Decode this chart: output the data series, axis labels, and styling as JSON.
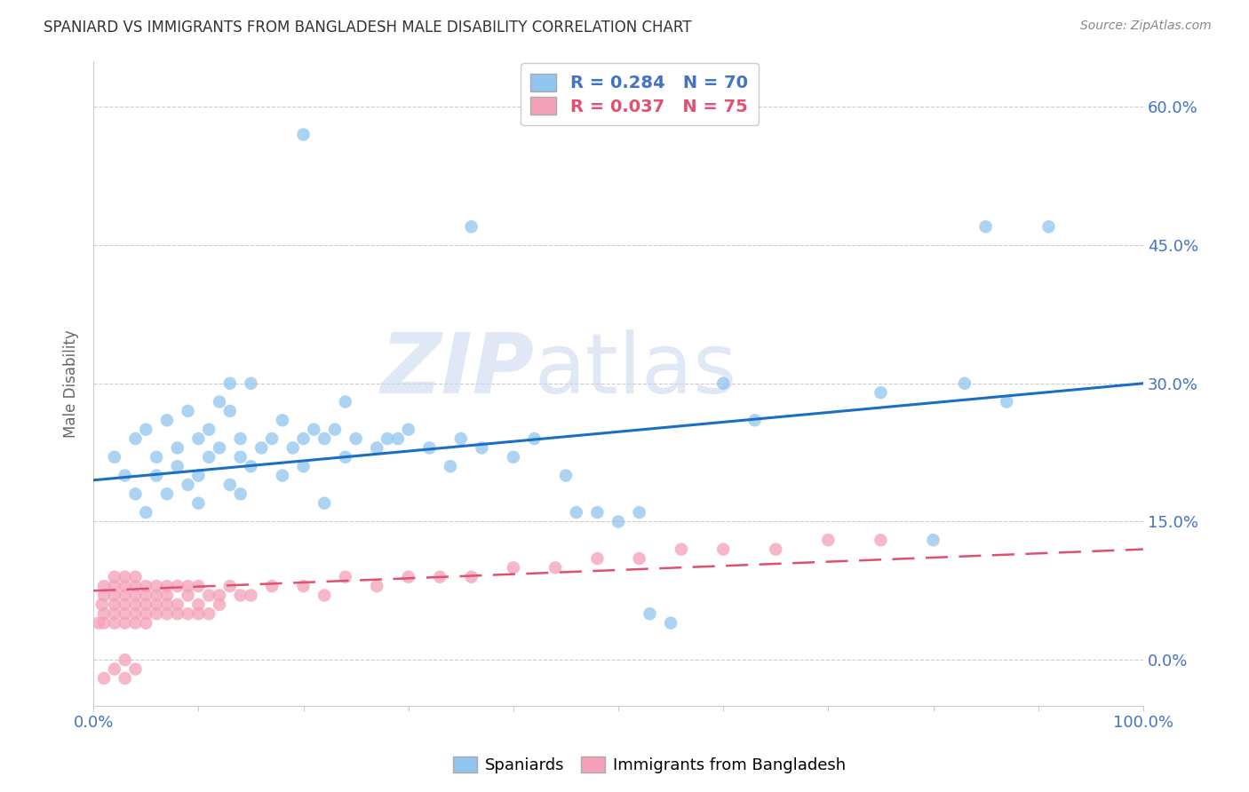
{
  "title": "SPANIARD VS IMMIGRANTS FROM BANGLADESH MALE DISABILITY CORRELATION CHART",
  "source": "Source: ZipAtlas.com",
  "ylabel": "Male Disability",
  "legend_label1": "Spaniards",
  "legend_label2": "Immigrants from Bangladesh",
  "R1": 0.284,
  "N1": 70,
  "R2": 0.037,
  "N2": 75,
  "color1": "#92C5F0",
  "color2": "#F4A0B8",
  "trendline1_color": "#1A6FC4",
  "trendline2_color": "#E05070",
  "xlim": [
    0.0,
    1.0
  ],
  "ylim": [
    -0.05,
    0.65
  ],
  "yticks": [
    0.0,
    0.15,
    0.3,
    0.45,
    0.6
  ],
  "xticks": [
    0.0,
    0.1,
    0.2,
    0.3,
    0.4,
    0.5,
    0.6,
    0.7,
    0.8,
    0.9,
    1.0
  ],
  "watermark_zip": "ZIP",
  "watermark_atlas": "atlas",
  "background_color": "#ffffff",
  "spaniards_x": [
    0.02,
    0.03,
    0.04,
    0.04,
    0.05,
    0.05,
    0.06,
    0.06,
    0.07,
    0.07,
    0.08,
    0.08,
    0.09,
    0.09,
    0.1,
    0.1,
    0.1,
    0.11,
    0.11,
    0.12,
    0.12,
    0.13,
    0.13,
    0.13,
    0.14,
    0.14,
    0.14,
    0.15,
    0.15,
    0.16,
    0.17,
    0.18,
    0.18,
    0.19,
    0.2,
    0.2,
    0.21,
    0.22,
    0.22,
    0.23,
    0.24,
    0.24,
    0.25,
    0.27,
    0.28,
    0.29,
    0.3,
    0.32,
    0.34,
    0.35,
    0.37,
    0.4,
    0.42,
    0.45,
    0.46,
    0.48,
    0.5,
    0.52,
    0.55,
    0.6,
    0.63,
    0.75,
    0.8,
    0.83,
    0.85,
    0.87,
    0.91,
    0.2,
    0.36,
    0.53
  ],
  "spaniards_y": [
    0.22,
    0.2,
    0.18,
    0.24,
    0.16,
    0.25,
    0.22,
    0.2,
    0.26,
    0.18,
    0.23,
    0.21,
    0.19,
    0.27,
    0.2,
    0.24,
    0.17,
    0.25,
    0.22,
    0.28,
    0.23,
    0.27,
    0.3,
    0.19,
    0.22,
    0.24,
    0.18,
    0.3,
    0.21,
    0.23,
    0.24,
    0.26,
    0.2,
    0.23,
    0.24,
    0.21,
    0.25,
    0.24,
    0.17,
    0.25,
    0.22,
    0.28,
    0.24,
    0.23,
    0.24,
    0.24,
    0.25,
    0.23,
    0.21,
    0.24,
    0.23,
    0.22,
    0.24,
    0.2,
    0.16,
    0.16,
    0.15,
    0.16,
    0.04,
    0.3,
    0.26,
    0.29,
    0.13,
    0.3,
    0.47,
    0.28,
    0.47,
    0.57,
    0.47,
    0.05
  ],
  "bangladesh_x": [
    0.005,
    0.008,
    0.01,
    0.01,
    0.01,
    0.01,
    0.02,
    0.02,
    0.02,
    0.02,
    0.02,
    0.02,
    0.03,
    0.03,
    0.03,
    0.03,
    0.03,
    0.03,
    0.04,
    0.04,
    0.04,
    0.04,
    0.04,
    0.04,
    0.05,
    0.05,
    0.05,
    0.05,
    0.05,
    0.06,
    0.06,
    0.06,
    0.06,
    0.07,
    0.07,
    0.07,
    0.07,
    0.08,
    0.08,
    0.08,
    0.09,
    0.09,
    0.09,
    0.1,
    0.1,
    0.1,
    0.11,
    0.11,
    0.12,
    0.12,
    0.13,
    0.14,
    0.15,
    0.17,
    0.2,
    0.22,
    0.24,
    0.27,
    0.3,
    0.33,
    0.36,
    0.4,
    0.44,
    0.48,
    0.52,
    0.56,
    0.6,
    0.65,
    0.7,
    0.75,
    0.01,
    0.02,
    0.03,
    0.03,
    0.04
  ],
  "bangladesh_y": [
    0.04,
    0.06,
    0.05,
    0.07,
    0.08,
    0.04,
    0.06,
    0.08,
    0.05,
    0.07,
    0.09,
    0.04,
    0.05,
    0.07,
    0.09,
    0.06,
    0.08,
    0.04,
    0.06,
    0.08,
    0.05,
    0.07,
    0.09,
    0.04,
    0.06,
    0.08,
    0.05,
    0.07,
    0.04,
    0.06,
    0.08,
    0.05,
    0.07,
    0.06,
    0.08,
    0.05,
    0.07,
    0.06,
    0.08,
    0.05,
    0.07,
    0.05,
    0.08,
    0.06,
    0.08,
    0.05,
    0.07,
    0.05,
    0.07,
    0.06,
    0.08,
    0.07,
    0.07,
    0.08,
    0.08,
    0.07,
    0.09,
    0.08,
    0.09,
    0.09,
    0.09,
    0.1,
    0.1,
    0.11,
    0.11,
    0.12,
    0.12,
    0.12,
    0.13,
    0.13,
    -0.02,
    -0.01,
    -0.02,
    0.0,
    -0.01
  ]
}
